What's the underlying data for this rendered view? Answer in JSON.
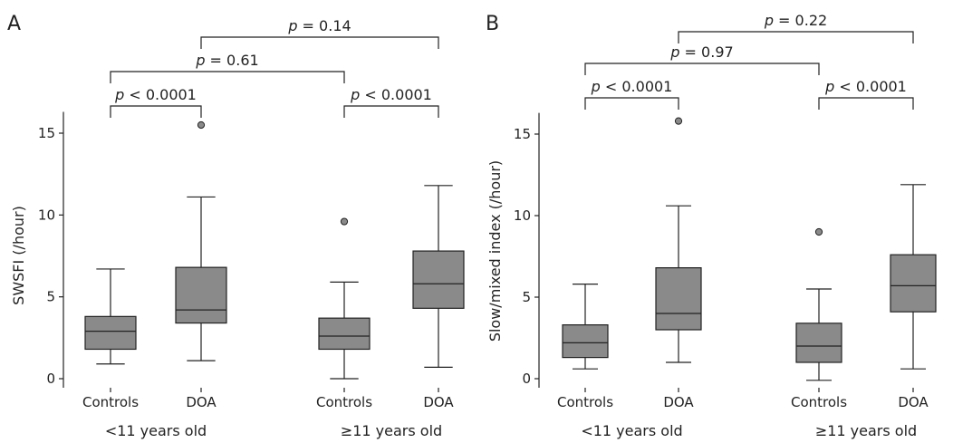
{
  "chart_data": [
    {
      "type": "box",
      "panel_label": "A",
      "ylabel": "SWSFI (/hour)",
      "ylim": [
        0,
        16.3
      ],
      "yticks": [
        0,
        5,
        10,
        15
      ],
      "groups": [
        "<11 years old",
        "≥11 years old"
      ],
      "categories": [
        "Controls",
        "DOA",
        "Controls",
        "DOA"
      ],
      "boxes": [
        {
          "group": "<11 years old",
          "category": "Controls",
          "whisker_low": 0.9,
          "q1": 1.8,
          "median": 2.9,
          "q3": 3.8,
          "whisker_high": 6.7,
          "outliers": []
        },
        {
          "group": "<11 years old",
          "category": "DOA",
          "whisker_low": 1.1,
          "q1": 3.4,
          "median": 4.2,
          "q3": 6.8,
          "whisker_high": 11.1,
          "outliers": [
            15.5
          ]
        },
        {
          "group": "≥11 years old",
          "category": "Controls",
          "whisker_low": 0.0,
          "q1": 1.8,
          "median": 2.6,
          "q3": 3.7,
          "whisker_high": 5.9,
          "outliers": [
            9.6
          ]
        },
        {
          "group": "≥11 years old",
          "category": "DOA",
          "whisker_low": 0.7,
          "q1": 4.3,
          "median": 5.8,
          "q3": 7.8,
          "whisker_high": 11.8,
          "outliers": []
        }
      ],
      "comparisons": [
        {
          "from": 0,
          "to": 1,
          "label": "< 0.0001",
          "level": 0
        },
        {
          "from": 2,
          "to": 3,
          "label": "< 0.0001",
          "level": 0
        },
        {
          "from": 0,
          "to": 2,
          "label": "= 0.61",
          "level": 1
        },
        {
          "from": 1,
          "to": 3,
          "label": "= 0.14",
          "level": 2
        }
      ]
    },
    {
      "type": "box",
      "panel_label": "B",
      "ylabel": "Slow/mixed index (/hour)",
      "ylim": [
        0,
        16.3
      ],
      "yticks": [
        0,
        5,
        10,
        15
      ],
      "groups": [
        "<11 years old",
        "≥11 years old"
      ],
      "categories": [
        "Controls",
        "DOA",
        "Controls",
        "DOA"
      ],
      "boxes": [
        {
          "group": "<11 years old",
          "category": "Controls",
          "whisker_low": 0.6,
          "q1": 1.3,
          "median": 2.2,
          "q3": 3.3,
          "whisker_high": 5.8,
          "outliers": []
        },
        {
          "group": "<11 years old",
          "category": "DOA",
          "whisker_low": 1.0,
          "q1": 3.0,
          "median": 4.0,
          "q3": 6.8,
          "whisker_high": 10.6,
          "outliers": [
            15.8
          ]
        },
        {
          "group": "≥11 years old",
          "category": "Controls",
          "whisker_low": -0.1,
          "q1": 1.0,
          "median": 2.0,
          "q3": 3.4,
          "whisker_high": 5.5,
          "outliers": [
            9.0
          ]
        },
        {
          "group": "≥11 years old",
          "category": "DOA",
          "whisker_low": 0.6,
          "q1": 4.1,
          "median": 5.7,
          "q3": 7.6,
          "whisker_high": 11.9,
          "outliers": []
        }
      ],
      "comparisons": [
        {
          "from": 0,
          "to": 1,
          "label": "< 0.0001",
          "level": 0
        },
        {
          "from": 2,
          "to": 3,
          "label": "< 0.0001",
          "level": 0
        },
        {
          "from": 0,
          "to": 2,
          "label": "= 0.97",
          "level": 1
        },
        {
          "from": 1,
          "to": 3,
          "label": "= 0.22",
          "level": 2
        }
      ]
    }
  ],
  "p_symbol": "p",
  "colors": {
    "box_fill": "#8a8a8a",
    "line": "#222222"
  }
}
